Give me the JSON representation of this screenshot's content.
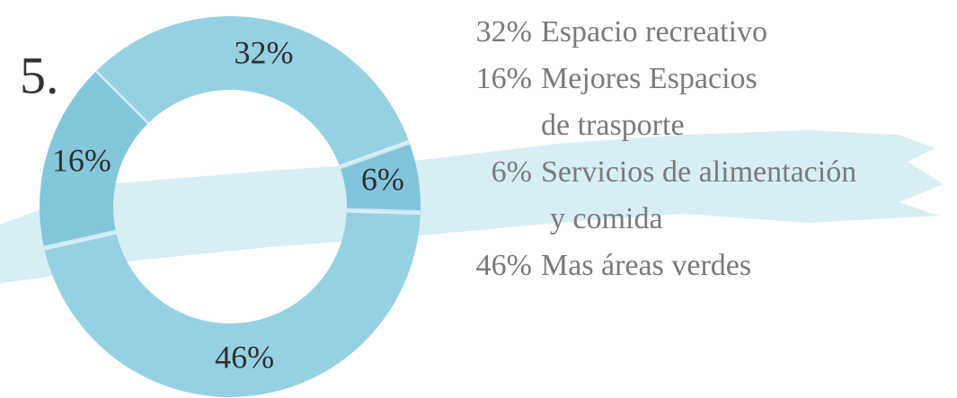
{
  "chart_data": {
    "type": "donut",
    "title": "5.",
    "categories": [
      [
        "Espacio recreativo"
      ],
      [
        "Mejores Espacios",
        "de trasporte"
      ],
      [
        "Servicios de alimentación",
        "y comida"
      ],
      [
        "Mas áreas verdes"
      ]
    ],
    "values": [
      32,
      16,
      6,
      46
    ],
    "value_labels": [
      "32%",
      "16%",
      "6%",
      "46%"
    ],
    "colors": [
      "#96d1e3",
      "#83c7dd",
      "#80c5dc",
      "#96d1e3"
    ]
  }
}
